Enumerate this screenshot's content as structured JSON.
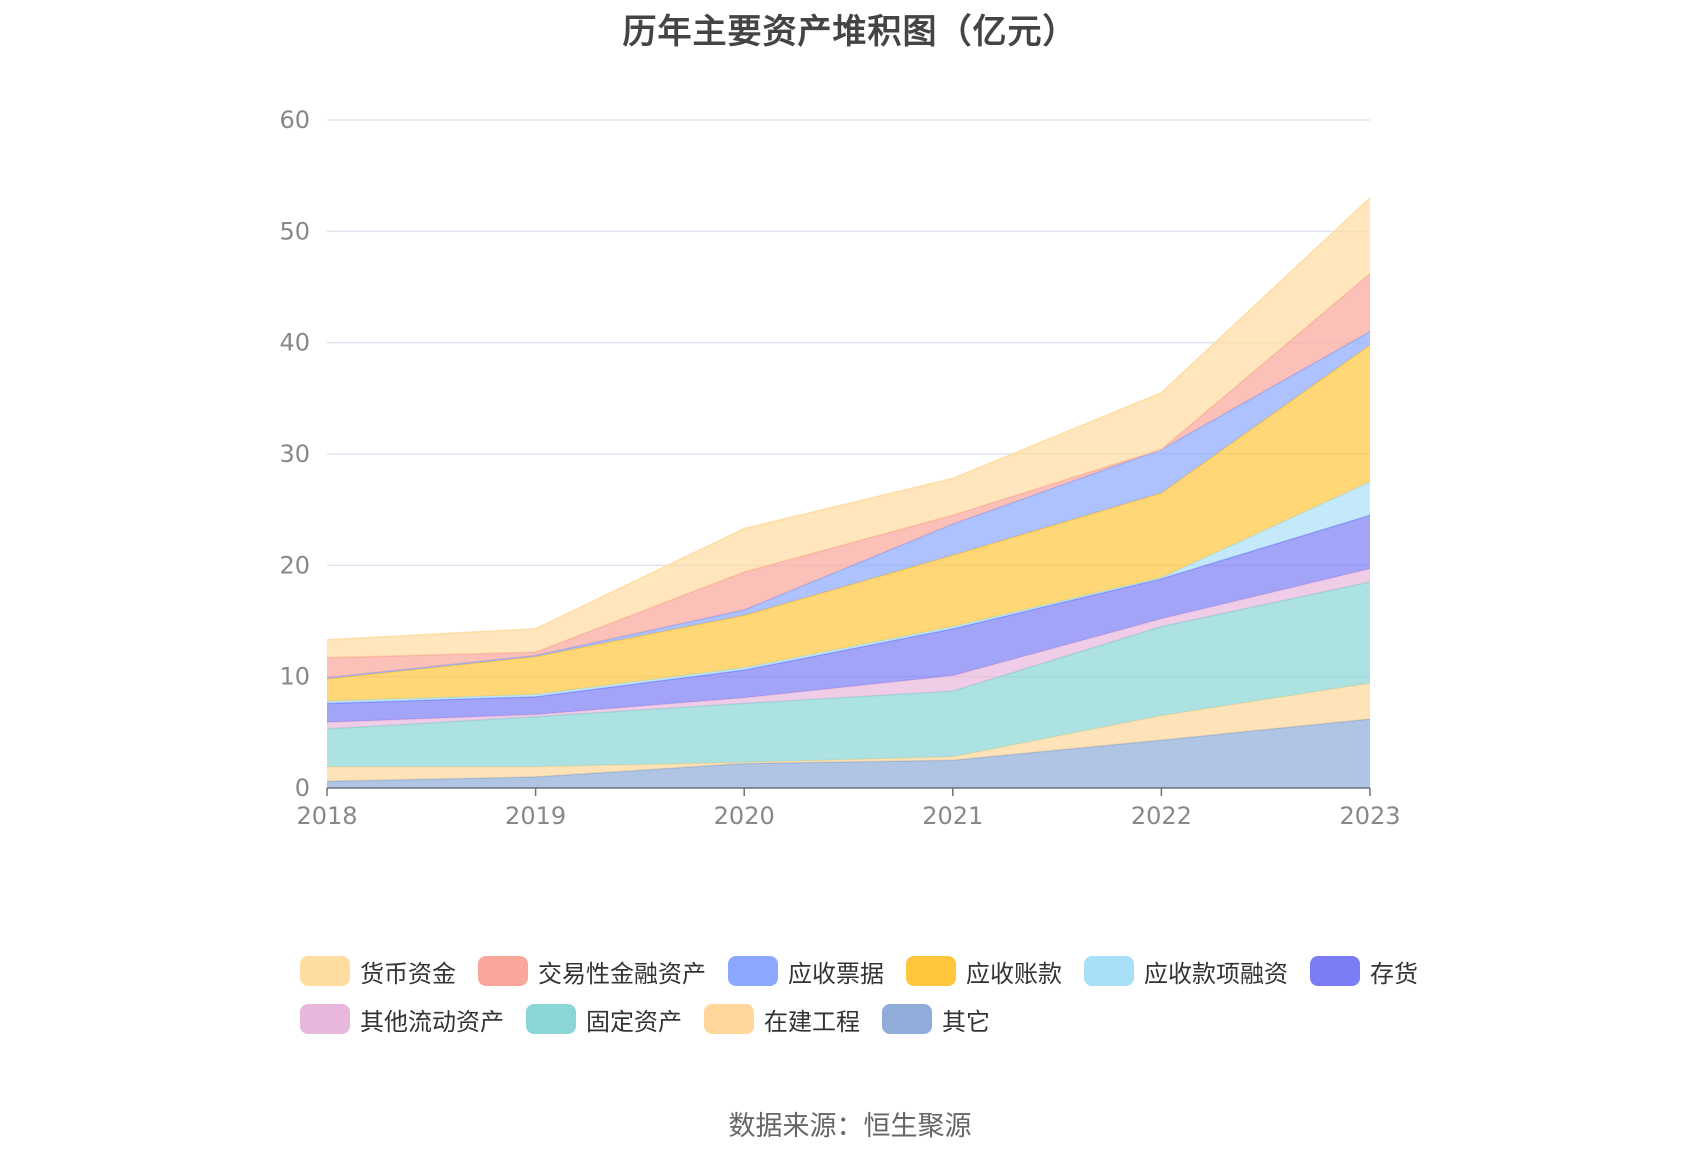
{
  "title": "历年主要资产堆积图（亿元）",
  "source": "数据来源：恒生聚源",
  "chart_data": {
    "type": "area",
    "stacked": true,
    "title": "历年主要资产堆积图（亿元）",
    "xlabel": "",
    "ylabel": "",
    "x": [
      "2018",
      "2019",
      "2020",
      "2021",
      "2022",
      "2023"
    ],
    "ylim": [
      0,
      60
    ],
    "yticks": [
      0,
      10,
      20,
      30,
      40,
      50,
      60
    ],
    "grid": true,
    "legend_position": "bottom",
    "series": [
      {
        "name": "其它",
        "color": "#8fadd8",
        "values": [
          0.6,
          1.0,
          2.2,
          2.5,
          4.3,
          6.2
        ]
      },
      {
        "name": "在建工程",
        "color": "#ffd79a",
        "values": [
          1.3,
          0.9,
          0.1,
          0.3,
          2.2,
          3.2
        ]
      },
      {
        "name": "固定资产",
        "color": "#8ad6d6",
        "values": [
          3.4,
          4.5,
          5.3,
          5.9,
          8.0,
          9.1
        ]
      },
      {
        "name": "其他流动资产",
        "color": "#e8b8dc",
        "values": [
          0.6,
          0.2,
          0.5,
          1.4,
          0.7,
          1.2
        ]
      },
      {
        "name": "存货",
        "color": "#7b7df5",
        "values": [
          1.7,
          1.6,
          2.5,
          4.2,
          3.6,
          4.8
        ]
      },
      {
        "name": "应收款项融资",
        "color": "#a9e0f8",
        "values": [
          0.2,
          0.2,
          0.2,
          0.2,
          0.1,
          3.0
        ]
      },
      {
        "name": "应收账款",
        "color": "#ffc63d",
        "values": [
          2.0,
          3.4,
          4.7,
          6.4,
          7.6,
          12.3
        ]
      },
      {
        "name": "应收票据",
        "color": "#8aa8ff",
        "values": [
          0.1,
          0.1,
          0.5,
          2.8,
          3.9,
          1.2
        ]
      },
      {
        "name": "交易性金融资产",
        "color": "#f9a79b",
        "values": [
          1.8,
          0.3,
          3.4,
          0.8,
          0.0,
          5.2
        ]
      },
      {
        "name": "货币资金",
        "color": "#ffdc9f",
        "values": [
          1.6,
          2.1,
          3.9,
          3.3,
          5.1,
          6.8
        ]
      }
    ]
  },
  "legend_rows": [
    [
      {
        "label": "货币资金",
        "color": "#ffdc9f"
      },
      {
        "label": "交易性金融资产",
        "color": "#f9a79b"
      },
      {
        "label": "应收票据",
        "color": "#8aa8ff"
      },
      {
        "label": "应收账款",
        "color": "#ffc63d"
      },
      {
        "label": "应收款项融资",
        "color": "#a9e0f8"
      },
      {
        "label": "存货",
        "color": "#7b7df5"
      }
    ],
    [
      {
        "label": "其他流动资产",
        "color": "#e8b8dc"
      },
      {
        "label": "固定资产",
        "color": "#8ad6d6"
      },
      {
        "label": "在建工程",
        "color": "#ffd79a"
      },
      {
        "label": "其它",
        "color": "#8fadd8"
      }
    ]
  ]
}
